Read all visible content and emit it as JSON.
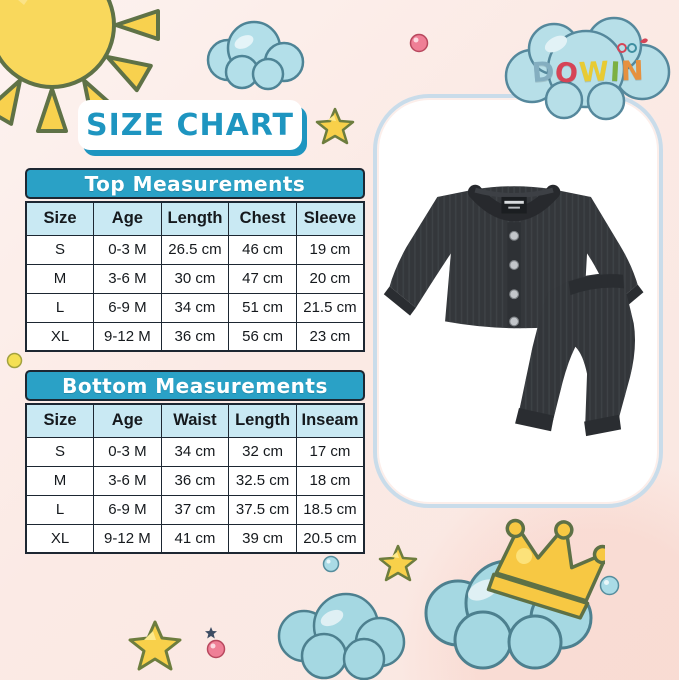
{
  "header": {
    "title": "SIZE CHART"
  },
  "brand": {
    "name": "DOWIN",
    "letters": [
      {
        "char": "D",
        "color": "#84aec0"
      },
      {
        "char": "O",
        "color": "#d64456"
      },
      {
        "char": "W",
        "color": "#e8cb33"
      },
      {
        "char": "I",
        "color": "#7cb041"
      },
      {
        "char": "N",
        "color": "#e6913f"
      }
    ]
  },
  "tables": [
    {
      "title": "Top Measurements",
      "columns": [
        "Size",
        "Age",
        "Length",
        "Chest",
        "Sleeve"
      ],
      "rows": [
        [
          "S",
          "0-3 M",
          "26.5 cm",
          "46 cm",
          "19 cm"
        ],
        [
          "M",
          "3-6 M",
          "30 cm",
          "47 cm",
          "20 cm"
        ],
        [
          "L",
          "6-9 M",
          "34 cm",
          "51 cm",
          "21.5 cm"
        ],
        [
          "XL",
          "9-12 M",
          "36 cm",
          "56 cm",
          "23 cm"
        ]
      ]
    },
    {
      "title": "Bottom Measurements",
      "columns": [
        "Size",
        "Age",
        "Waist",
        "Length",
        "Inseam"
      ],
      "rows": [
        [
          "S",
          "0-3 M",
          "34 cm",
          "32 cm",
          "17 cm"
        ],
        [
          "M",
          "3-6 M",
          "36 cm",
          "32.5 cm",
          "18 cm"
        ],
        [
          "L",
          "6-9 M",
          "37 cm",
          "37.5 cm",
          "18.5 cm"
        ],
        [
          "XL",
          "9-12 M",
          "41 cm",
          "39 cm",
          "20.5 cm"
        ]
      ]
    }
  ],
  "product": {
    "description": "Dark grey knitted baby thermal set: long-sleeve button-front top with matching pants"
  },
  "colors": {
    "background_pink": "#fbe9e4",
    "accent_teal": "#2aa1c6",
    "table_header_bg": "#c9e9f3",
    "title_blue": "#1e95c0",
    "table_border": "#1d2732",
    "cloud_blue": "#b3dfe9",
    "sun_yellow": "#f8d14e",
    "crown_yellow": "#f7c843",
    "ball_pink": "#ef7f96",
    "garment_charcoal": "#34373b"
  },
  "icons": [
    "sun-icon",
    "cloud-icon",
    "star-icon",
    "crown-icon",
    "ball-icon",
    "glasses-icon"
  ]
}
